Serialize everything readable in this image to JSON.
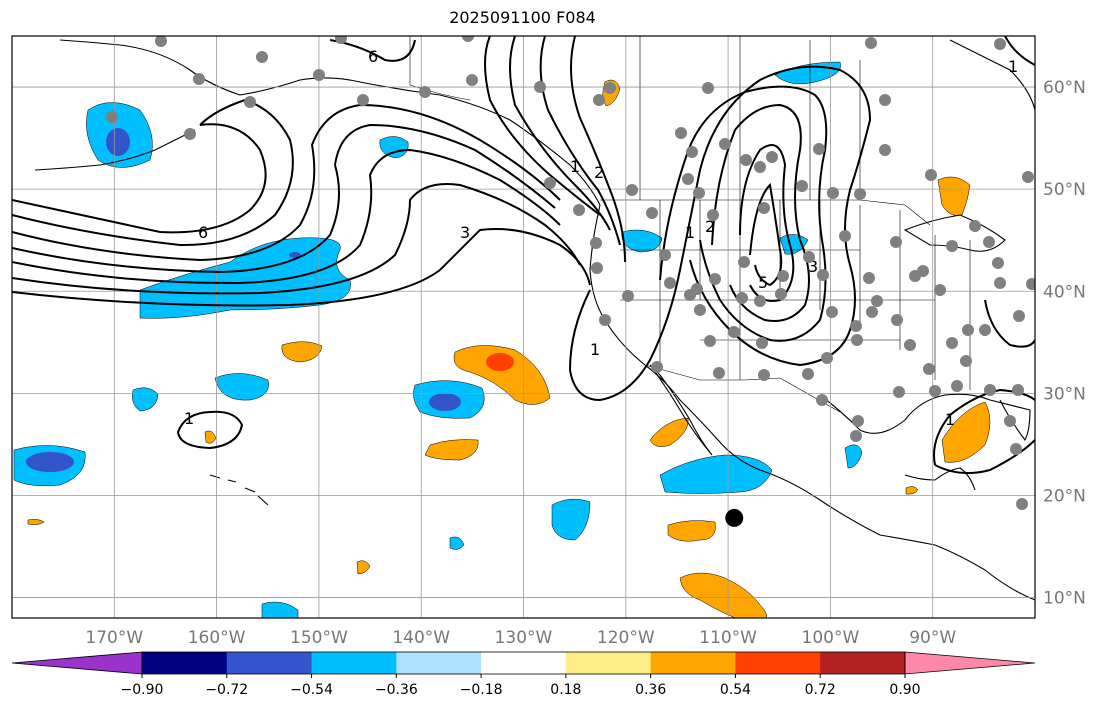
{
  "title": "2025091100 F084",
  "map": {
    "lon_range": [
      -180,
      -80
    ],
    "lat_range": [
      8,
      65
    ],
    "lat_labels": [
      "10°N",
      "20°N",
      "30°N",
      "40°N",
      "50°N",
      "60°N"
    ],
    "lon_labels": [
      "170°W",
      "160°W",
      "150°W",
      "140°W",
      "130°W",
      "120°W",
      "110°W",
      "100°W",
      "90°W"
    ],
    "contour_labels": [
      "6",
      "6",
      "3",
      "2",
      "1",
      "1",
      "2",
      "3",
      "5",
      "1",
      "1",
      "1",
      "1"
    ],
    "station_color": "#808080",
    "storm_marker": {
      "lon": -109.4,
      "lat": 17.8,
      "color": "#000000"
    }
  },
  "colorbar": {
    "colors": [
      "#9933cc",
      "#000080",
      "#3355cc",
      "#00bfff",
      "#aee0ff",
      "#ffffff",
      "#ffee88",
      "#ffa500",
      "#ff4000",
      "#b22222",
      "#ff88aa"
    ],
    "tick_labels": [
      "−0.90",
      "−0.72",
      "−0.54",
      "−0.36",
      "−0.18",
      "0.18",
      "0.36",
      "0.54",
      "0.72",
      "0.90"
    ]
  }
}
